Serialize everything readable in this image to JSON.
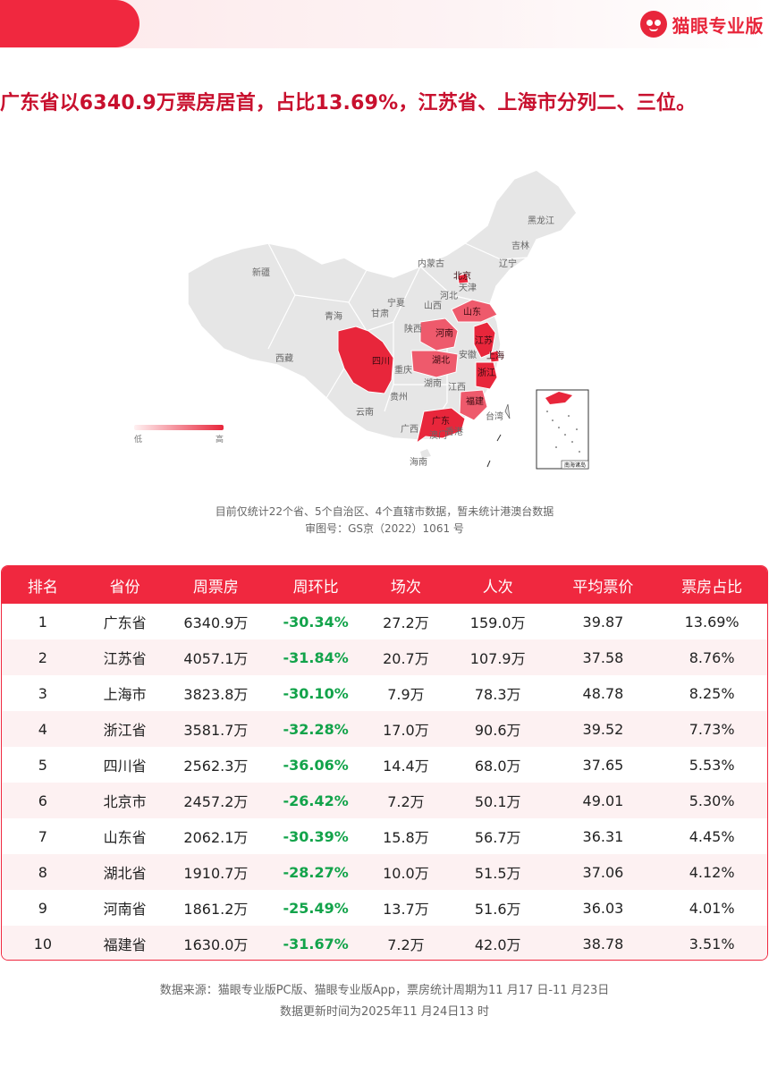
{
  "brand": {
    "name": "猫眼专业版",
    "logo_icon": "cat-eye-logo-icon",
    "accent": "#e8263b"
  },
  "headline": "广东省以6340.9万票房居首，占比13.69%，江苏省、上海市分列二、三位。",
  "map": {
    "provinces": [
      "黑龙江",
      "吉林",
      "辽宁",
      "内蒙古",
      "北京",
      "天津",
      "河北",
      "山西",
      "宁夏",
      "甘肃",
      "新疆",
      "青海",
      "西藏",
      "山东",
      "河南",
      "陕西",
      "江苏",
      "上海",
      "湖北",
      "安徽",
      "四川",
      "重庆",
      "湖南",
      "江西",
      "浙江",
      "福建",
      "贵州",
      "云南",
      "广西",
      "广东",
      "澳门",
      "香港",
      "台湾",
      "海南"
    ],
    "inset_label": "南海诸岛",
    "legend": {
      "low": "低",
      "high": "高"
    },
    "colors": {
      "base": "#e6e6e6",
      "high": "#e8263b",
      "mid": "#ee5a6c",
      "low": "#f59aa5"
    }
  },
  "notes": {
    "line1": "目前仅统计22个省、5个自治区、4个直辖市数据，暂未统计港澳台数据",
    "line2": "审图号：GS京（2022）1061 号"
  },
  "table": {
    "headers": [
      "排名",
      "省份",
      "周票房",
      "周环比",
      "场次",
      "人次",
      "平均票价",
      "票房占比"
    ],
    "rows": [
      [
        "1",
        "广东省",
        "6340.9万",
        "-30.34%",
        "27.2万",
        "159.0万",
        "39.87",
        "13.69%"
      ],
      [
        "2",
        "江苏省",
        "4057.1万",
        "-31.84%",
        "20.7万",
        "107.9万",
        "37.58",
        "8.76%"
      ],
      [
        "3",
        "上海市",
        "3823.8万",
        "-30.10%",
        "7.9万",
        "78.3万",
        "48.78",
        "8.25%"
      ],
      [
        "4",
        "浙江省",
        "3581.7万",
        "-32.28%",
        "17.0万",
        "90.6万",
        "39.52",
        "7.73%"
      ],
      [
        "5",
        "四川省",
        "2562.3万",
        "-36.06%",
        "14.4万",
        "68.0万",
        "37.65",
        "5.53%"
      ],
      [
        "6",
        "北京市",
        "2457.2万",
        "-26.42%",
        "7.2万",
        "50.1万",
        "49.01",
        "5.30%"
      ],
      [
        "7",
        "山东省",
        "2062.1万",
        "-30.39%",
        "15.8万",
        "56.7万",
        "36.31",
        "4.45%"
      ],
      [
        "8",
        "湖北省",
        "1910.7万",
        "-28.27%",
        "10.0万",
        "51.5万",
        "37.06",
        "4.12%"
      ],
      [
        "9",
        "河南省",
        "1861.2万",
        "-25.49%",
        "13.7万",
        "51.6万",
        "36.03",
        "4.01%"
      ],
      [
        "10",
        "福建省",
        "1630.0万",
        "-31.67%",
        "7.2万",
        "42.0万",
        "38.78",
        "3.51%"
      ]
    ]
  },
  "footer": {
    "line1": "数据来源：猫眼专业版PC版、猫眼专业版App，票房统计周期为11 月17 日-11 月23日",
    "line2": "数据更新时间为2025年11 月24日13 时"
  }
}
